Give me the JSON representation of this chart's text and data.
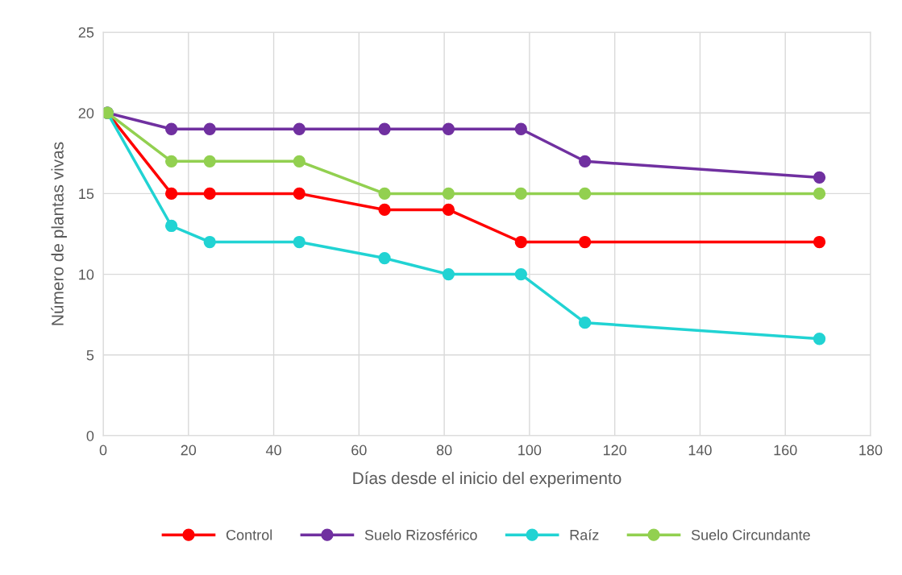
{
  "chart_data": {
    "type": "line",
    "xlabel": "Días desde el inicio del experimento",
    "ylabel": "Número de plantas vivas",
    "x": [
      1,
      16,
      25,
      46,
      66,
      81,
      98,
      113,
      168
    ],
    "series": [
      {
        "name": "Control",
        "color": "#ff0000",
        "values": [
          20,
          15,
          15,
          15,
          14,
          14,
          12,
          12,
          12
        ]
      },
      {
        "name": "Suelo Rizosférico",
        "color": "#7030a0",
        "values": [
          20,
          19,
          19,
          19,
          19,
          19,
          19,
          17,
          16
        ]
      },
      {
        "name": "Raíz",
        "color": "#21d3d3",
        "values": [
          20,
          13,
          12,
          12,
          11,
          10,
          10,
          7,
          6
        ]
      },
      {
        "name": "Suelo Circundante",
        "color": "#92d050",
        "values": [
          20,
          17,
          17,
          17,
          15,
          15,
          15,
          15,
          15
        ]
      }
    ],
    "xlim": [
      0,
      180
    ],
    "xticks": [
      0,
      20,
      40,
      60,
      80,
      100,
      120,
      140,
      160,
      180
    ],
    "ylim": [
      0,
      25
    ],
    "yticks": [
      0,
      5,
      10,
      15,
      20,
      25
    ],
    "grid": true,
    "legend": "bottom",
    "marker": "circle",
    "line_style": "solid"
  }
}
